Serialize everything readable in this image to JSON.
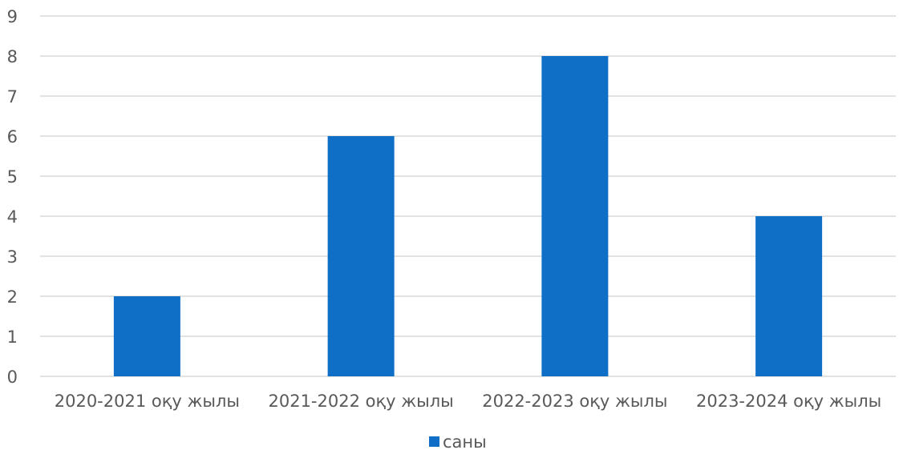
{
  "chart_data": {
    "type": "bar",
    "categories": [
      "2020-2021 оқу жылы",
      "2021-2022 оқу жылы",
      "2022-2023 оқу жылы",
      "2023-2024 оқу жылы"
    ],
    "series": [
      {
        "name": "саны",
        "values": [
          2,
          6,
          8,
          4
        ],
        "color": "#0f6ec6"
      }
    ],
    "ylim": [
      0,
      9
    ],
    "yticks": [
      0,
      1,
      2,
      3,
      4,
      5,
      6,
      7,
      8,
      9
    ],
    "grid": true,
    "legend_position": "bottom"
  }
}
